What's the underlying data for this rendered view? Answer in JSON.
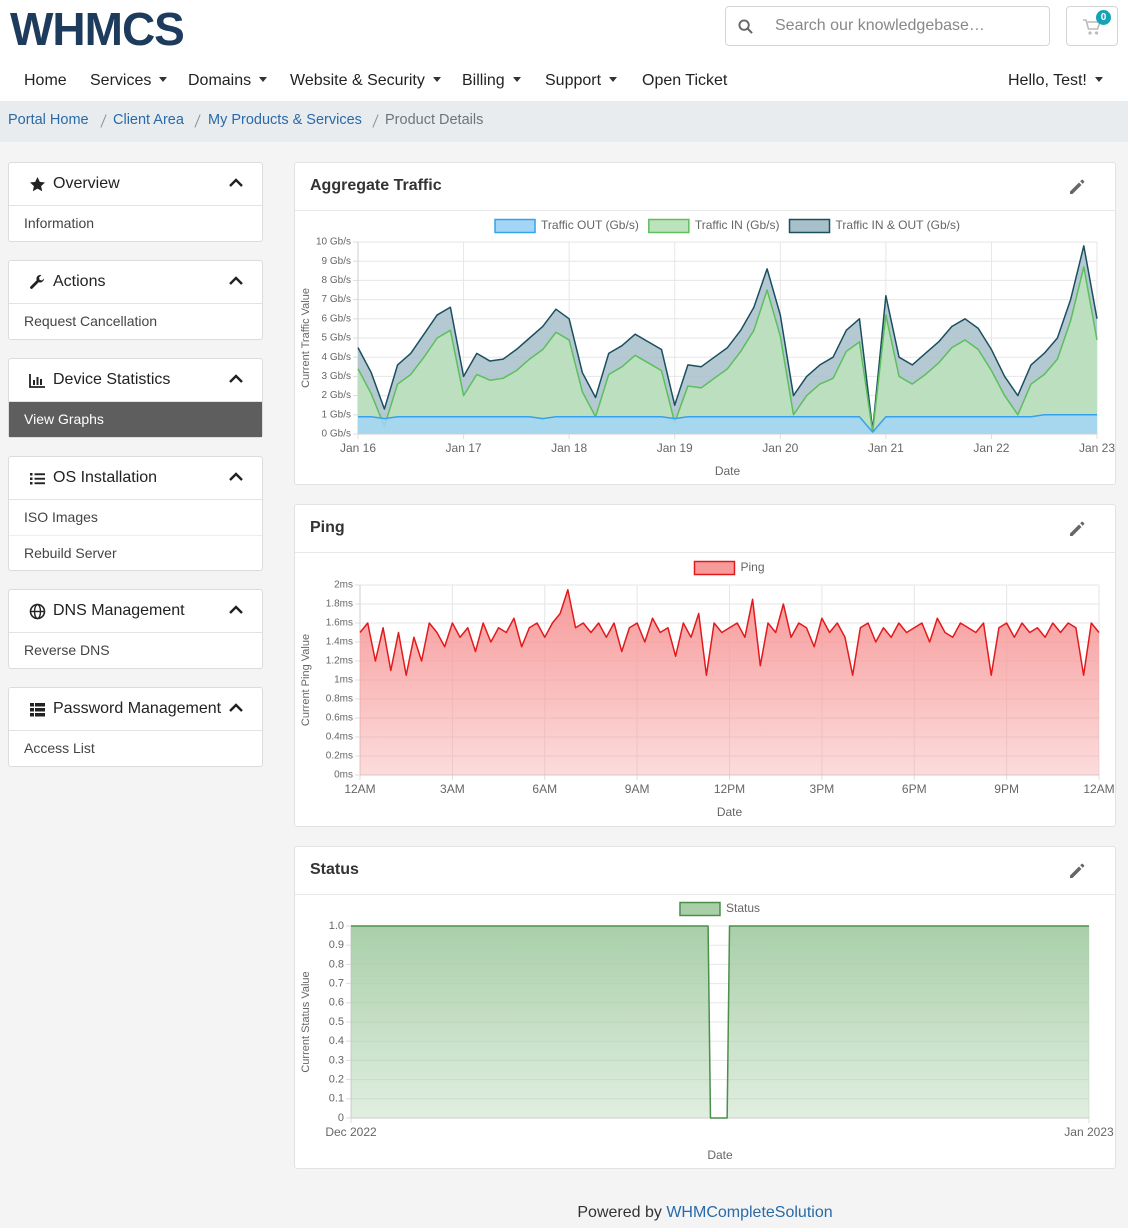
{
  "header": {
    "logo": "WHMCS",
    "search_placeholder": "Search our knowledgebase…",
    "cart_count": 0
  },
  "nav": {
    "items": [
      "Home",
      "Services",
      "Domains",
      "Website & Security",
      "Billing",
      "Support",
      "Open Ticket"
    ],
    "user": "Hello, Test!"
  },
  "breadcrumb": [
    "Portal Home",
    "Client Area",
    "My Products & Services",
    "Product Details"
  ],
  "sidebar": [
    {
      "title": "Overview",
      "items": [
        "Information"
      ]
    },
    {
      "title": "Actions",
      "items": [
        "Request Cancellation"
      ]
    },
    {
      "title": "Device Statistics",
      "items": [
        "View Graphs"
      ]
    },
    {
      "title": "OS Installation",
      "items": [
        "ISO Images",
        "Rebuild Server"
      ]
    },
    {
      "title": "DNS Management",
      "items": [
        "Reverse DNS"
      ]
    },
    {
      "title": "Password Management",
      "items": [
        "Access List"
      ]
    }
  ],
  "chart_data": [
    {
      "type": "area",
      "title": "Aggregate Traffic",
      "x_label": "Date",
      "y_label": "Current Traffic Value",
      "grid": true,
      "x": [
        0,
        0.125,
        0.25,
        0.375,
        0.5,
        0.625,
        0.75,
        0.875,
        1,
        1.125,
        1.25,
        1.375,
        1.5,
        1.625,
        1.75,
        1.875,
        2,
        2.125,
        2.25,
        2.375,
        2.5,
        2.625,
        2.75,
        2.875,
        3,
        3.125,
        3.25,
        3.375,
        3.5,
        3.625,
        3.75,
        3.875,
        4,
        4.125,
        4.25,
        4.375,
        4.5,
        4.625,
        4.75,
        4.875,
        5,
        5.125,
        5.25,
        5.375,
        5.5,
        5.625,
        5.75,
        5.875,
        6,
        6.125,
        6.25,
        6.375,
        6.5,
        6.625,
        6.75,
        6.875,
        7
      ],
      "xlim": [
        0,
        7
      ],
      "xticks": [
        {
          "value": 0,
          "label": "Jan 16"
        },
        {
          "value": 1,
          "label": "Jan 17"
        },
        {
          "value": 2,
          "label": "Jan 18"
        },
        {
          "value": 3,
          "label": "Jan 19"
        },
        {
          "value": 4,
          "label": "Jan 20"
        },
        {
          "value": 5,
          "label": "Jan 21"
        },
        {
          "value": 6,
          "label": "Jan 22"
        },
        {
          "value": 7,
          "label": "Jan 23"
        }
      ],
      "ylim": [
        0,
        10
      ],
      "yticks": [
        {
          "value": 0,
          "label": "0 Gb/s"
        },
        {
          "value": 1,
          "label": "1 Gb/s"
        },
        {
          "value": 2,
          "label": "2 Gb/s"
        },
        {
          "value": 3,
          "label": "3 Gb/s"
        },
        {
          "value": 4,
          "label": "4 Gb/s"
        },
        {
          "value": 5,
          "label": "5 Gb/s"
        },
        {
          "value": 6,
          "label": "6 Gb/s"
        },
        {
          "value": 7,
          "label": "7 Gb/s"
        },
        {
          "value": 8,
          "label": "8 Gb/s"
        },
        {
          "value": 9,
          "label": "9 Gb/s"
        },
        {
          "value": 10,
          "label": "10 Gb/s"
        }
      ],
      "series": [
        {
          "name": "Traffic OUT (Gb/s)",
          "color": "#36a2eb",
          "fill": "#a3d5f7",
          "values": [
            0.9,
            0.9,
            0.8,
            0.9,
            0.9,
            0.9,
            0.9,
            0.9,
            0.9,
            0.9,
            0.9,
            0.9,
            0.9,
            0.9,
            0.8,
            0.9,
            0.9,
            0.9,
            0.9,
            0.9,
            0.9,
            0.9,
            0.9,
            0.9,
            0.8,
            0.9,
            0.9,
            0.9,
            0.9,
            0.9,
            0.9,
            0.9,
            0.9,
            0.9,
            0.9,
            0.9,
            0.9,
            0.9,
            0.9,
            0.1,
            0.9,
            0.9,
            0.9,
            0.9,
            0.9,
            0.9,
            0.9,
            0.9,
            0.9,
            0.9,
            0.9,
            0.9,
            1.0,
            1.0,
            1.0,
            1.0,
            1.0
          ]
        },
        {
          "name": "Traffic IN (Gb/s)",
          "color": "#5cbf5c",
          "fill": "#bde3bd",
          "values": [
            3.4,
            2.1,
            0.4,
            2.6,
            3.1,
            4.0,
            5.0,
            5.4,
            2.0,
            3.1,
            2.8,
            2.9,
            3.3,
            3.9,
            4.4,
            5.3,
            4.9,
            2.2,
            0.9,
            3.1,
            3.5,
            4.1,
            3.7,
            3.3,
            0.6,
            2.5,
            2.4,
            2.9,
            3.4,
            4.3,
            5.4,
            7.5,
            5.1,
            1.0,
            2.0,
            2.6,
            2.9,
            4.3,
            4.8,
            0.1,
            6.2,
            3.0,
            2.6,
            3.1,
            3.7,
            4.5,
            4.9,
            4.4,
            3.3,
            2.0,
            1.0,
            2.6,
            3.1,
            3.9,
            5.9,
            8.7,
            4.9
          ]
        },
        {
          "name": "Traffic IN & OUT (Gb/s)",
          "color": "#1b4f5f",
          "fill": "#a8c0ca",
          "values": [
            4.5,
            3.2,
            1.3,
            3.6,
            4.2,
            5.2,
            6.2,
            6.6,
            3.0,
            4.2,
            3.8,
            3.9,
            4.4,
            5.0,
            5.6,
            6.5,
            6.0,
            3.2,
            1.9,
            4.2,
            4.6,
            5.2,
            4.8,
            4.4,
            1.5,
            3.6,
            3.5,
            4.0,
            4.5,
            5.4,
            6.6,
            8.6,
            6.2,
            2.0,
            3.0,
            3.6,
            4.0,
            5.4,
            6.0,
            0.2,
            7.2,
            4.0,
            3.6,
            4.2,
            4.8,
            5.6,
            6.0,
            5.5,
            4.4,
            3.0,
            2.0,
            3.6,
            4.2,
            5.0,
            7.0,
            9.8,
            6.0
          ]
        }
      ]
    },
    {
      "type": "area",
      "title": "Ping",
      "x_label": "Date",
      "y_label": "Current Ping Value",
      "grid": true,
      "x": [
        0,
        0.25,
        0.5,
        0.75,
        1,
        1.25,
        1.5,
        1.75,
        2,
        2.25,
        2.5,
        2.75,
        3,
        3.25,
        3.5,
        3.75,
        4,
        4.25,
        4.5,
        4.75,
        5,
        5.25,
        5.5,
        5.75,
        6,
        6.25,
        6.5,
        6.75,
        7,
        7.25,
        7.5,
        7.75,
        8,
        8.25,
        8.5,
        8.75,
        9,
        9.25,
        9.5,
        9.75,
        10,
        10.25,
        10.5,
        10.75,
        11,
        11.25,
        11.5,
        11.75,
        12,
        12.25,
        12.5,
        12.75,
        13,
        13.25,
        13.5,
        13.75,
        14,
        14.25,
        14.5,
        14.75,
        15,
        15.25,
        15.5,
        15.75,
        16,
        16.25,
        16.5,
        16.75,
        17,
        17.25,
        17.5,
        17.75,
        18,
        18.25,
        18.5,
        18.75,
        19,
        19.25,
        19.5,
        19.75,
        20,
        20.25,
        20.5,
        20.75,
        21,
        21.25,
        21.5,
        21.75,
        22,
        22.25,
        22.5,
        22.75,
        23,
        23.25,
        23.5,
        23.75,
        24
      ],
      "xlim": [
        0,
        24
      ],
      "xticks": [
        {
          "value": 0,
          "label": "12AM"
        },
        {
          "value": 3,
          "label": "3AM"
        },
        {
          "value": 6,
          "label": "6AM"
        },
        {
          "value": 9,
          "label": "9AM"
        },
        {
          "value": 12,
          "label": "12PM"
        },
        {
          "value": 15,
          "label": "3PM"
        },
        {
          "value": 18,
          "label": "6PM"
        },
        {
          "value": 21,
          "label": "9PM"
        },
        {
          "value": 24,
          "label": "12AM"
        }
      ],
      "ylim": [
        0,
        2
      ],
      "yticks": [
        {
          "value": 0,
          "label": "0ms"
        },
        {
          "value": 0.2,
          "label": "0.2ms"
        },
        {
          "value": 0.4,
          "label": "0.4ms"
        },
        {
          "value": 0.6,
          "label": "0.6ms"
        },
        {
          "value": 0.8,
          "label": "0.8ms"
        },
        {
          "value": 1,
          "label": "1ms"
        },
        {
          "value": 1.2,
          "label": "1.2ms"
        },
        {
          "value": 1.4,
          "label": "1.4ms"
        },
        {
          "value": 1.6,
          "label": "1.6ms"
        },
        {
          "value": 1.8,
          "label": "1.8ms"
        },
        {
          "value": 2,
          "label": "2ms"
        }
      ],
      "series": [
        {
          "name": "Ping",
          "color": "#e31a1c",
          "fill": "#f79a9a",
          "values": [
            1.5,
            1.6,
            1.2,
            1.55,
            1.1,
            1.5,
            1.05,
            1.45,
            1.2,
            1.6,
            1.5,
            1.35,
            1.6,
            1.45,
            1.55,
            1.3,
            1.6,
            1.4,
            1.55,
            1.5,
            1.65,
            1.35,
            1.55,
            1.6,
            1.45,
            1.6,
            1.7,
            1.95,
            1.55,
            1.6,
            1.5,
            1.6,
            1.45,
            1.6,
            1.3,
            1.55,
            1.6,
            1.4,
            1.65,
            1.5,
            1.55,
            1.25,
            1.6,
            1.45,
            1.7,
            1.05,
            1.6,
            1.5,
            1.55,
            1.6,
            1.45,
            1.85,
            1.15,
            1.6,
            1.5,
            1.8,
            1.45,
            1.6,
            1.55,
            1.35,
            1.65,
            1.5,
            1.6,
            1.45,
            1.05,
            1.55,
            1.6,
            1.4,
            1.55,
            1.45,
            1.6,
            1.5,
            1.55,
            1.6,
            1.4,
            1.65,
            1.5,
            1.45,
            1.6,
            1.55,
            1.5,
            1.6,
            1.05,
            1.55,
            1.6,
            1.45,
            1.6,
            1.5,
            1.55,
            1.45,
            1.6,
            1.5,
            1.6,
            1.55,
            1.05,
            1.6,
            1.5
          ]
        }
      ]
    },
    {
      "type": "area",
      "title": "Status",
      "x_label": "Date",
      "y_label": "Current Status Value",
      "grid": true,
      "x": [
        0,
        15,
        15.1,
        15.8,
        15.9,
        31
      ],
      "xlim": [
        0,
        31
      ],
      "xticks": [
        {
          "value": 0,
          "label": "Dec 2022"
        },
        {
          "value": 31,
          "label": "Jan 2023"
        }
      ],
      "ylim": [
        0,
        1
      ],
      "yticks": [
        0,
        0.1,
        0.2,
        0.3,
        0.4,
        0.5,
        0.6,
        0.7,
        0.8,
        0.9,
        {
          "value": 1,
          "label": "1.0"
        }
      ],
      "series": [
        {
          "name": "Status",
          "color": "#4b8f4b",
          "fill": "#a9cfa9",
          "values": [
            1,
            1,
            0,
            0,
            1,
            1
          ]
        }
      ]
    }
  ],
  "footer": {
    "prefix": "Powered by",
    "link": "WHMCompleteSolution"
  }
}
